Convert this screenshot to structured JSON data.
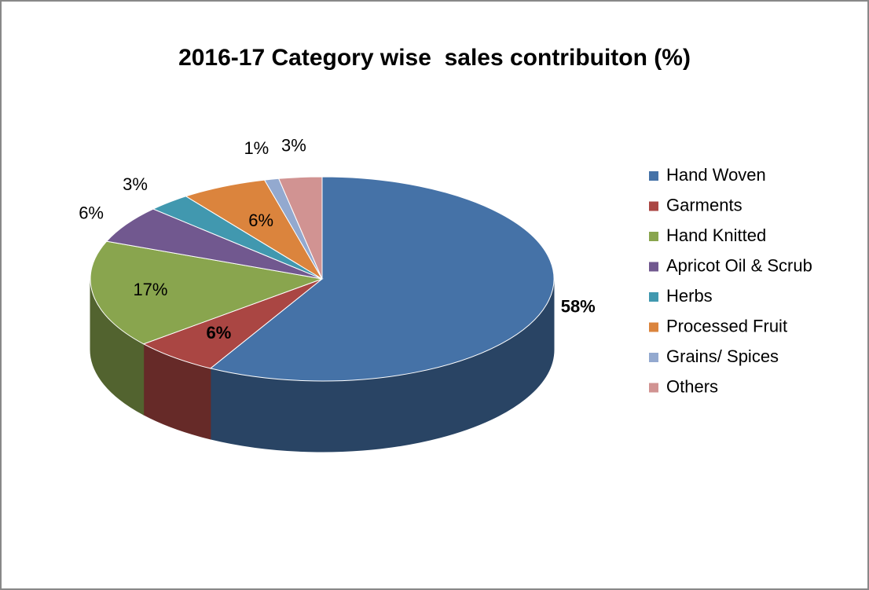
{
  "chart_data": {
    "type": "pie",
    "title": "2016-17 Category wise  sales contribuiton (%)",
    "categories": [
      "Hand Woven",
      "Garments",
      "Hand Knitted",
      "Apricot Oil & Scrub",
      "Herbs",
      "Processed Fruit",
      "Grains/ Spices",
      "Others"
    ],
    "values": [
      58,
      6,
      17,
      6,
      3,
      6,
      1,
      3
    ],
    "value_labels": [
      "58%",
      "6%",
      "17%",
      "6%",
      "3%",
      "6%",
      "1%",
      "3%"
    ],
    "value_label_bold": [
      true,
      true,
      false,
      false,
      false,
      false,
      false,
      false
    ],
    "colors": [
      "#4572a7",
      "#aa4643",
      "#89a54e",
      "#71588f",
      "#4198af",
      "#db843d",
      "#93a9cf",
      "#d19392"
    ],
    "legend": "right"
  }
}
